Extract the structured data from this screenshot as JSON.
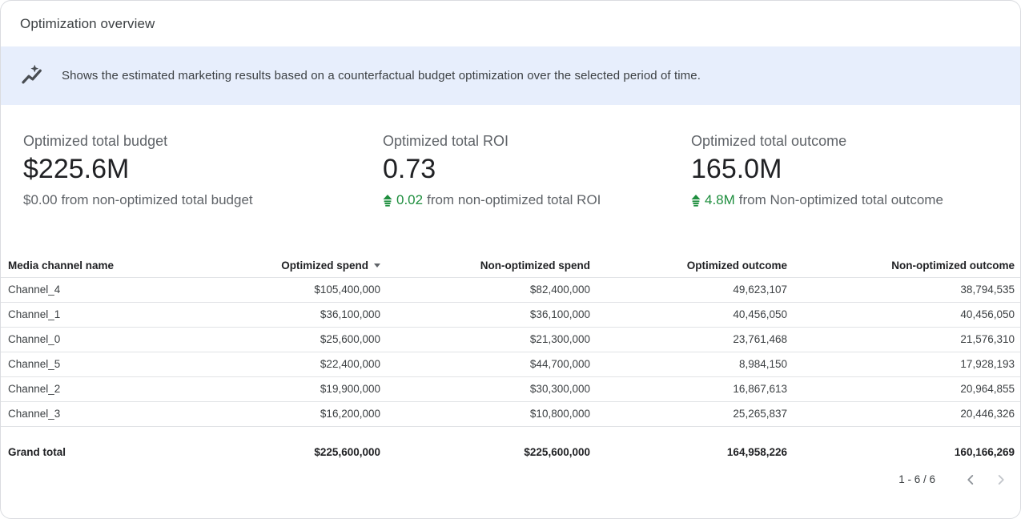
{
  "header": {
    "title": "Optimization overview"
  },
  "banner": {
    "icon": "insights-icon",
    "text": "Shows the estimated marketing results based on a counterfactual budget optimization over the selected period of time."
  },
  "kpis": [
    {
      "label": "Optimized total budget",
      "value": "$225.6M",
      "delta_amount": "$0.00",
      "delta_text": "from non-optimized total budget",
      "positive": false
    },
    {
      "label": "Optimized total ROI",
      "value": "0.73",
      "delta_amount": "0.02",
      "delta_text": "from non-optimized total ROI",
      "positive": true
    },
    {
      "label": "Optimized total outcome",
      "value": "165.0M",
      "delta_amount": "4.8M",
      "delta_text": "from Non-optimized total outcome",
      "positive": true
    }
  ],
  "table": {
    "columns": [
      {
        "label": "Media channel name",
        "sorted": false
      },
      {
        "label": "Optimized spend",
        "sorted": true,
        "sort_direction": "desc"
      },
      {
        "label": "Non-optimized spend",
        "sorted": false
      },
      {
        "label": "Optimized outcome",
        "sorted": false
      },
      {
        "label": "Non-optimized outcome",
        "sorted": false
      }
    ],
    "rows": [
      [
        "Channel_4",
        "$105,400,000",
        "$82,400,000",
        "49,623,107",
        "38,794,535"
      ],
      [
        "Channel_1",
        "$36,100,000",
        "$36,100,000",
        "40,456,050",
        "40,456,050"
      ],
      [
        "Channel_0",
        "$25,600,000",
        "$21,300,000",
        "23,761,468",
        "21,576,310"
      ],
      [
        "Channel_5",
        "$22,400,000",
        "$44,700,000",
        "8,984,150",
        "17,928,193"
      ],
      [
        "Channel_2",
        "$19,900,000",
        "$30,300,000",
        "16,867,613",
        "20,964,855"
      ],
      [
        "Channel_3",
        "$16,200,000",
        "$10,800,000",
        "25,265,837",
        "20,446,326"
      ]
    ],
    "grand_total": [
      "Grand total",
      "$225,600,000",
      "$225,600,000",
      "164,958,226",
      "160,166,269"
    ]
  },
  "pagination": {
    "range": "1 - 6 / 6"
  },
  "colors": {
    "positive_green": "#1e8e3e",
    "banner_bg": "#e7eefc",
    "border": "#e1e3e6",
    "text_primary": "#202124",
    "text_secondary": "#5f6368"
  }
}
